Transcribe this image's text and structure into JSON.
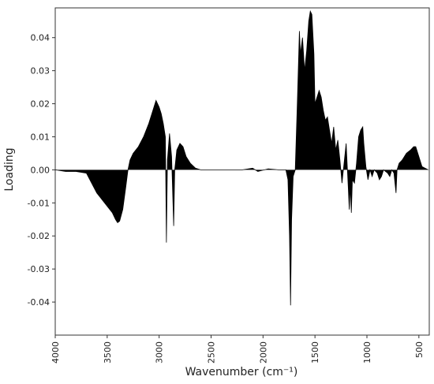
{
  "chart_data": {
    "type": "area",
    "xlabel": "Wavenumber (cm⁻¹)",
    "ylabel": "Loading",
    "x": [
      4000,
      3900,
      3800,
      3700,
      3650,
      3600,
      3550,
      3500,
      3450,
      3420,
      3400,
      3380,
      3350,
      3320,
      3300,
      3280,
      3250,
      3200,
      3150,
      3100,
      3060,
      3030,
      3000,
      2980,
      2960,
      2940,
      2930,
      2920,
      2900,
      2880,
      2860,
      2850,
      2830,
      2800,
      2770,
      2740,
      2700,
      2650,
      2600,
      2500,
      2400,
      2300,
      2200,
      2100,
      2050,
      1950,
      1850,
      1780,
      1760,
      1745,
      1735,
      1725,
      1710,
      1690,
      1670,
      1650,
      1640,
      1620,
      1600,
      1580,
      1560,
      1545,
      1530,
      1510,
      1500,
      1480,
      1460,
      1440,
      1420,
      1400,
      1380,
      1360,
      1340,
      1320,
      1300,
      1280,
      1260,
      1240,
      1220,
      1200,
      1180,
      1170,
      1160,
      1150,
      1140,
      1120,
      1100,
      1080,
      1060,
      1040,
      1030,
      1010,
      990,
      970,
      950,
      930,
      900,
      880,
      860,
      840,
      800,
      780,
      760,
      740,
      720,
      710,
      690,
      660,
      620,
      580,
      550,
      530,
      500,
      470,
      440,
      410
    ],
    "values": [
      0,
      -0.0005,
      -0.0005,
      -0.001,
      -0.004,
      -0.007,
      -0.009,
      -0.011,
      -0.013,
      -0.015,
      -0.016,
      -0.0155,
      -0.012,
      -0.005,
      0,
      0.003,
      0.005,
      0.007,
      0.01,
      0.014,
      0.018,
      0.021,
      0.019,
      0.017,
      0.014,
      0.01,
      -0.022,
      0.003,
      0.011,
      0.004,
      -0.017,
      0,
      0.006,
      0.008,
      0.007,
      0.004,
      0.002,
      0.0005,
      0,
      0,
      0,
      0,
      0,
      0.0005,
      -0.0005,
      0.0003,
      0,
      0,
      -0.003,
      -0.02,
      -0.041,
      -0.015,
      -0.002,
      0,
      0.02,
      0.042,
      0.035,
      0.04,
      0.03,
      0.036,
      0.045,
      0.048,
      0.047,
      0.035,
      0.02,
      0.022,
      0.024,
      0.022,
      0.018,
      0.015,
      0.016,
      0.012,
      0.008,
      0.013,
      0.006,
      0.009,
      0.003,
      -0.004,
      0.002,
      0.008,
      -0.005,
      -0.012,
      -0.005,
      -0.013,
      -0.003,
      -0.004,
      0.002,
      0.01,
      0.012,
      0.013,
      0.008,
      0.001,
      -0.003,
      0,
      -0.002,
      0,
      -0.001,
      -0.003,
      -0.002,
      0,
      -0.001,
      -0.002,
      0,
      -0.001,
      -0.007,
      0,
      0.002,
      0.003,
      0.005,
      0.006,
      0.007,
      0.007,
      0.004,
      0.001,
      0.0005,
      0
    ],
    "color": "#000000",
    "xlim": [
      4000,
      400
    ],
    "xticks": [
      4000,
      3500,
      3000,
      2500,
      2000,
      1500,
      1000,
      500
    ],
    "ylim": [
      -0.05,
      0.049
    ],
    "yticks": [
      -0.04,
      -0.03,
      -0.02,
      -0.01,
      {
        "value": 0,
        "label": "0.00"
      },
      0.01,
      0.02,
      0.03,
      0.04
    ]
  }
}
